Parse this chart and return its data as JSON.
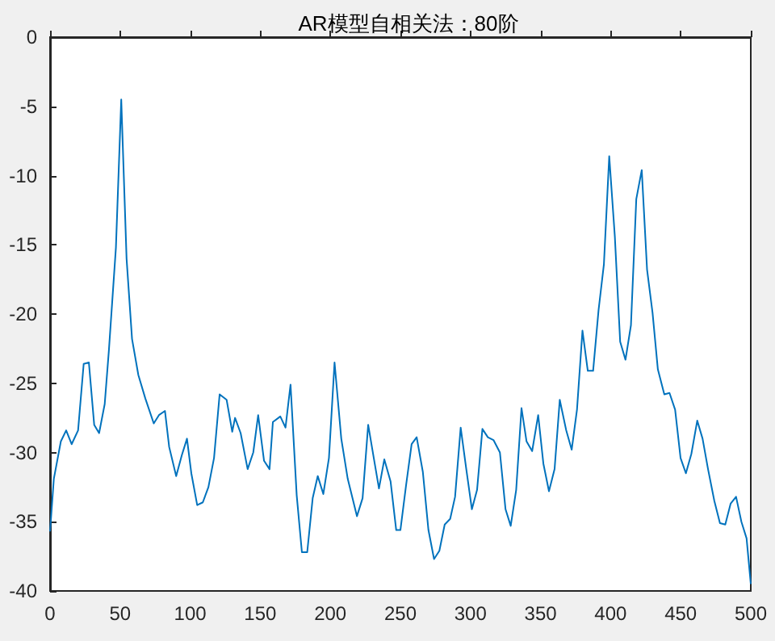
{
  "chart_data": {
    "type": "line",
    "title": "AR模型自相关法：80阶",
    "xlim": [
      0,
      500
    ],
    "xticks": [
      0,
      50,
      100,
      150,
      200,
      250,
      300,
      350,
      400,
      450,
      500
    ],
    "ylim": [
      -40,
      0
    ],
    "yticks": [
      -40,
      -35,
      -30,
      -25,
      -20,
      -15,
      -10,
      -5,
      0
    ],
    "grid": false,
    "marker": "none",
    "line_style": "solid",
    "series": [
      {
        "color": "#0072bd",
        "x": [
          0,
          2.7,
          7.7,
          11.5,
          15.4,
          20,
          24,
          27.7,
          31.5,
          35,
          39,
          42,
          47,
          50.8,
          54.6,
          58.5,
          63,
          68,
          74,
          77.7,
          82,
          85,
          90,
          94,
          97.7,
          100.8,
          105,
          109,
          113,
          117,
          121,
          126,
          130,
          132,
          136,
          141,
          145,
          148.5,
          152.7,
          156.6,
          159,
          164.3,
          168,
          171.6,
          176,
          179.7,
          183.5,
          187.4,
          191,
          195,
          199,
          203,
          207.8,
          212.4,
          219,
          223,
          227,
          231,
          234.7,
          238.5,
          243,
          247,
          250,
          254,
          258,
          261.6,
          266,
          270,
          274,
          277.8,
          281.6,
          285.5,
          289,
          293,
          297,
          301,
          304.7,
          308.5,
          312.4,
          316.4,
          321,
          325,
          328.7,
          332.6,
          336.4,
          340,
          344,
          348.3,
          352,
          356,
          360,
          363.7,
          368.3,
          372.2,
          376,
          379.9,
          383.7,
          387.5,
          391.4,
          395.2,
          399,
          403,
          406.8,
          410.6,
          414.5,
          418.3,
          422.2,
          426,
          429.9,
          433.7,
          438.3,
          442,
          446,
          449.9,
          453.7,
          457.6,
          461.8,
          465.6,
          469.5,
          474,
          478,
          481.8,
          485.6,
          489.5,
          493.3,
          497,
          500
        ],
        "values": [
          -35.7,
          -31.9,
          -29.2,
          -28.4,
          -29.4,
          -28.4,
          -23.6,
          -23.5,
          -28,
          -28.6,
          -26.5,
          -22.6,
          -15.2,
          -4.5,
          -16,
          -21.8,
          -24.4,
          -26.1,
          -27.9,
          -27.3,
          -27,
          -29.6,
          -31.7,
          -30.2,
          -29,
          -31.5,
          -33.8,
          -33.6,
          -32.5,
          -30.4,
          -25.8,
          -26.2,
          -28.5,
          -27.5,
          -28.6,
          -31.2,
          -30,
          -27.3,
          -30.6,
          -31.2,
          -27.8,
          -27.4,
          -28.2,
          -25.1,
          -33.1,
          -37.2,
          -37.2,
          -33.3,
          -31.7,
          -33,
          -30.4,
          -23.5,
          -29,
          -31.9,
          -34.6,
          -33.3,
          -28,
          -30.4,
          -32.6,
          -30.5,
          -32.1,
          -35.6,
          -35.6,
          -32.4,
          -29.4,
          -28.9,
          -31.4,
          -35.6,
          -37.7,
          -37.1,
          -35.2,
          -34.8,
          -33.2,
          -28.2,
          -31.2,
          -34.1,
          -32.7,
          -28.3,
          -28.9,
          -29.1,
          -30,
          -34.1,
          -35.3,
          -32.7,
          -26.8,
          -29.2,
          -29.9,
          -27.3,
          -30.8,
          -32.8,
          -31.2,
          -26.2,
          -28.4,
          -29.8,
          -26.9,
          -21.2,
          -24.1,
          -24.1,
          -19.7,
          -16.4,
          -8.6,
          -14.4,
          -22,
          -23.3,
          -20.8,
          -11.7,
          -9.6,
          -16.8,
          -19.9,
          -24,
          -25.8,
          -25.7,
          -26.9,
          -30.4,
          -31.5,
          -30.1,
          -27.7,
          -29,
          -31.2,
          -33.5,
          -35.1,
          -35.2,
          -33.7,
          -33.2,
          -35,
          -36.2,
          -39.5
        ]
      }
    ]
  }
}
